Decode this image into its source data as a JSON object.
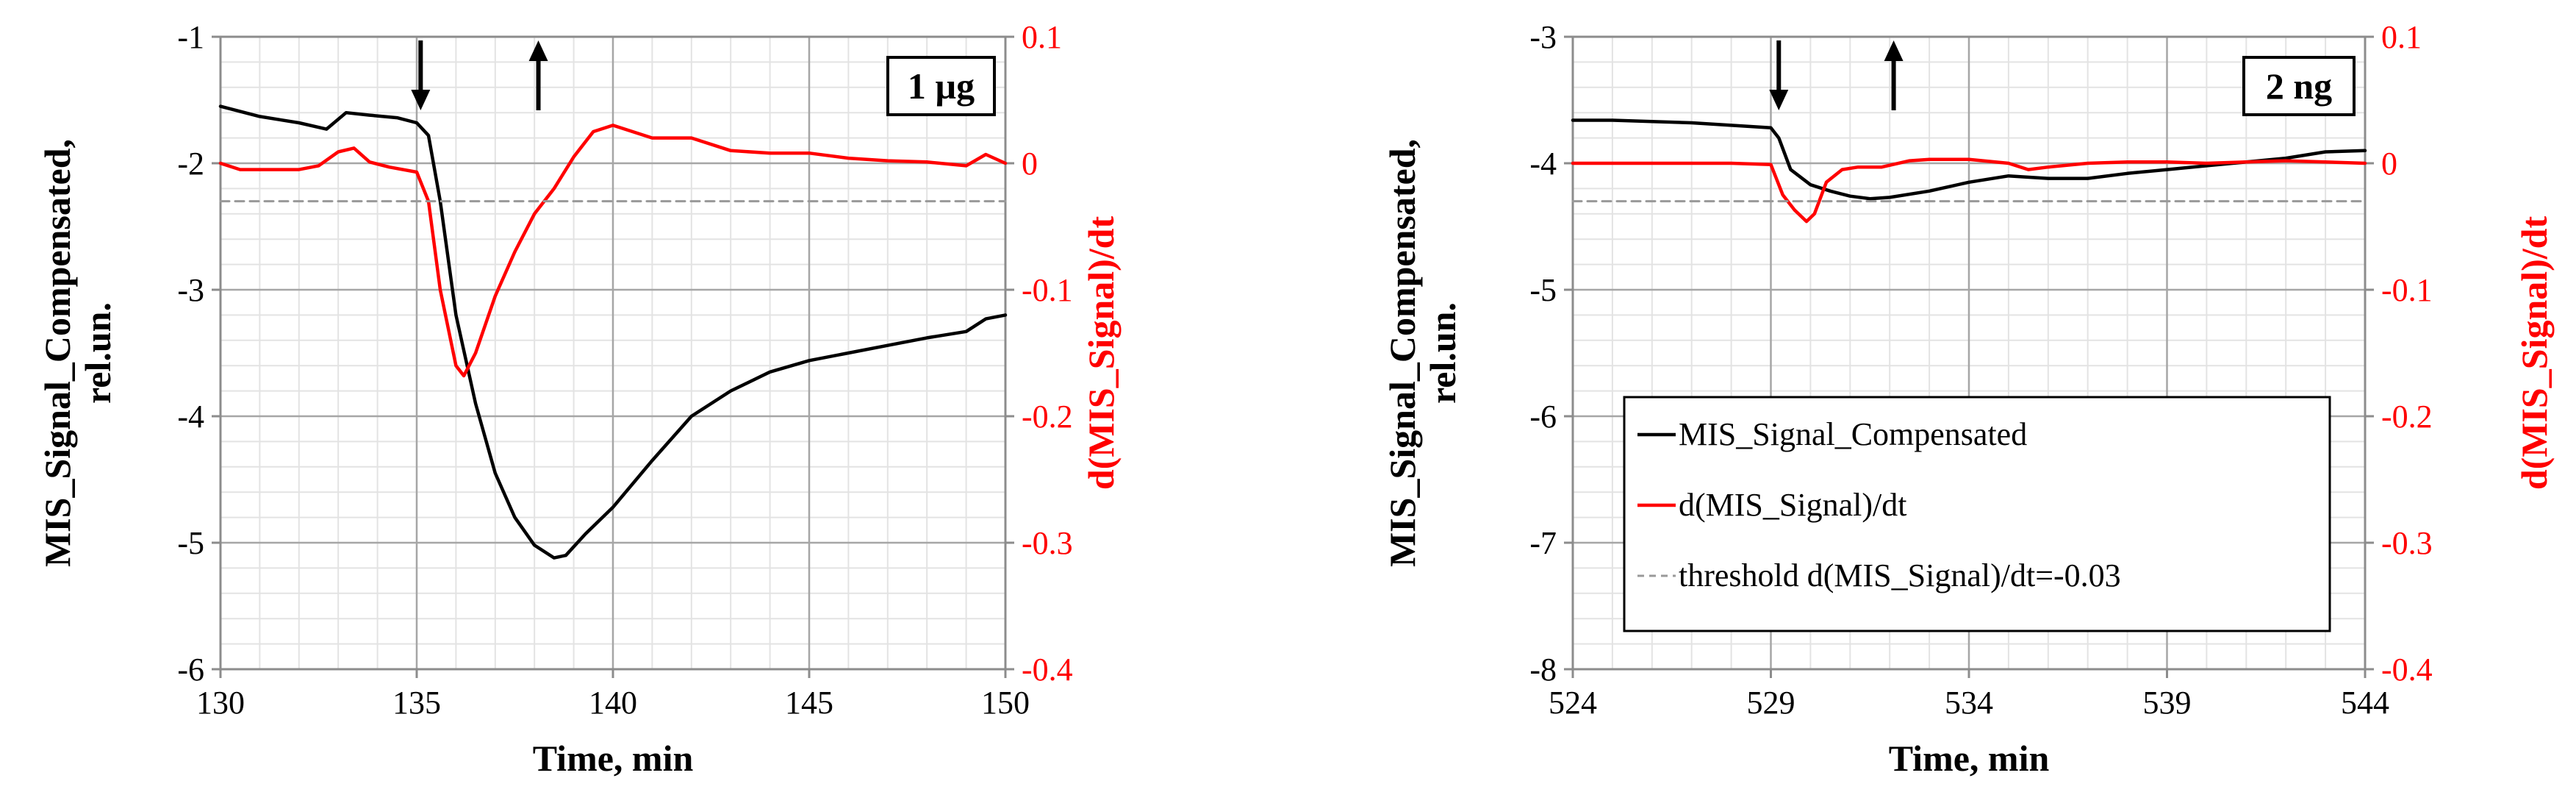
{
  "chart_data": [
    {
      "type": "line",
      "annotation": "1 µg",
      "xlabel": "Time, min",
      "ylabel_left_line1": "MIS_Signal_Compensated,",
      "ylabel_left_line2": "rel.un.",
      "ylabel_right": "d(MIS_Signal)/dt",
      "xlim": [
        130,
        150
      ],
      "x_ticks": [
        130,
        135,
        140,
        145,
        150
      ],
      "x_tick_labels": [
        "130",
        "135",
        "140",
        "145",
        "150"
      ],
      "ylim_left": [
        -6,
        -1
      ],
      "y_left_ticks": [
        -6,
        -5,
        -4,
        -3,
        -2,
        -1
      ],
      "y_left_tick_labels": [
        "-6",
        "-5",
        "-4",
        "-3",
        "-2",
        "-1"
      ],
      "ylim_right": [
        -0.4,
        0.1
      ],
      "y_right_ticks": [
        -0.4,
        -0.3,
        -0.2,
        -0.1,
        0,
        0.1
      ],
      "y_right_tick_labels": [
        "-0.4",
        "-0.3",
        "-0.2",
        "-0.1",
        "0",
        "0.1"
      ],
      "grid": true,
      "arrows": [
        {
          "x": 135.1,
          "direction": "down"
        },
        {
          "x": 138.1,
          "direction": "up"
        }
      ],
      "series": [
        {
          "axis": "left",
          "color": "#000000",
          "style": "solid",
          "x": [
            130,
            131,
            132,
            132.7,
            133.2,
            133.8,
            134.5,
            135.0,
            135.3,
            135.6,
            136.0,
            136.5,
            137.0,
            137.5,
            138.0,
            138.5,
            138.8,
            139.3,
            140.0,
            141.0,
            142.0,
            143.0,
            144.0,
            145.0,
            146.0,
            147.0,
            148.0,
            149.0,
            149.5,
            150.0
          ],
          "y": [
            -1.55,
            -1.63,
            -1.68,
            -1.73,
            -1.6,
            -1.62,
            -1.64,
            -1.68,
            -1.78,
            -2.3,
            -3.2,
            -3.9,
            -4.45,
            -4.8,
            -5.02,
            -5.12,
            -5.1,
            -4.93,
            -4.72,
            -4.35,
            -4.0,
            -3.8,
            -3.65,
            -3.56,
            -3.5,
            -3.44,
            -3.38,
            -3.33,
            -3.23,
            -3.2
          ]
        },
        {
          "axis": "right",
          "color": "#ff0000",
          "style": "solid",
          "x": [
            130,
            130.5,
            131,
            132,
            132.5,
            133.0,
            133.4,
            133.8,
            134.3,
            135.0,
            135.3,
            135.6,
            136.0,
            136.2,
            136.5,
            137.0,
            137.5,
            138.0,
            138.5,
            139.0,
            139.5,
            140.0,
            141.0,
            142.0,
            143.0,
            144.0,
            145.0,
            146.0,
            147.0,
            148.0,
            149.0,
            149.5,
            150.0
          ],
          "y": [
            0.0,
            -0.005,
            -0.005,
            -0.005,
            -0.002,
            0.009,
            0.012,
            0.001,
            -0.003,
            -0.007,
            -0.03,
            -0.1,
            -0.16,
            -0.168,
            -0.15,
            -0.105,
            -0.07,
            -0.04,
            -0.02,
            0.005,
            0.025,
            0.03,
            0.02,
            0.02,
            0.01,
            0.008,
            0.008,
            0.004,
            0.002,
            0.001,
            -0.002,
            0.007,
            0.0
          ]
        },
        {
          "axis": "right",
          "color": "#999999",
          "style": "dashed",
          "x": [
            130,
            150
          ],
          "y": [
            -0.03,
            -0.03
          ]
        }
      ]
    },
    {
      "type": "line",
      "annotation": "2 ng",
      "xlabel": "Time, min",
      "ylabel_left_line1": "MIS_Signal_Compensated,",
      "ylabel_left_line2": "rel.un.",
      "ylabel_right": "d(MIS_Signal)/dt",
      "xlim": [
        524,
        544
      ],
      "x_ticks": [
        524,
        529,
        534,
        539,
        544
      ],
      "x_tick_labels": [
        "524",
        "529",
        "534",
        "539",
        "544"
      ],
      "ylim_left": [
        -8,
        -3
      ],
      "y_left_ticks": [
        -8,
        -7,
        -6,
        -5,
        -4,
        -3
      ],
      "y_left_tick_labels": [
        "-8",
        "-7",
        "-6",
        "-5",
        "-4",
        "-3"
      ],
      "ylim_right": [
        -0.4,
        0.1
      ],
      "y_right_ticks": [
        -0.4,
        -0.3,
        -0.2,
        -0.1,
        0,
        0.1
      ],
      "y_right_tick_labels": [
        "-0.4",
        "-0.3",
        "-0.2",
        "-0.1",
        "0",
        "0.1"
      ],
      "grid": true,
      "arrows": [
        {
          "x": 529.2,
          "direction": "down"
        },
        {
          "x": 532.1,
          "direction": "up"
        }
      ],
      "legend": {
        "placement": "lower-center",
        "entries": [
          {
            "label": "MIS_Signal_Compensated",
            "color": "#000000",
            "style": "solid"
          },
          {
            "label": "d(MIS_Signal)/dt",
            "color": "#ff0000",
            "style": "solid"
          },
          {
            "label": "threshold d(MIS_Signal)/dt=-0.03",
            "color": "#999999",
            "style": "dashed"
          }
        ]
      },
      "series": [
        {
          "axis": "left",
          "color": "#000000",
          "style": "solid",
          "x": [
            524,
            525,
            526,
            527,
            528,
            529.0,
            529.2,
            529.5,
            530.0,
            530.5,
            531.0,
            531.5,
            532.0,
            533.0,
            534.0,
            535.0,
            536.0,
            537.0,
            538.0,
            539.0,
            540.0,
            541.0,
            542.0,
            543.0,
            544.0
          ],
          "y": [
            -3.66,
            -3.66,
            -3.67,
            -3.68,
            -3.7,
            -3.72,
            -3.8,
            -4.05,
            -4.17,
            -4.22,
            -4.26,
            -4.28,
            -4.27,
            -4.22,
            -4.15,
            -4.1,
            -4.12,
            -4.12,
            -4.08,
            -4.05,
            -4.02,
            -3.99,
            -3.96,
            -3.91,
            -3.9
          ]
        },
        {
          "axis": "right",
          "color": "#ff0000",
          "style": "solid",
          "x": [
            524,
            525,
            526,
            527,
            528,
            529.0,
            529.3,
            529.6,
            529.9,
            530.1,
            530.4,
            530.8,
            531.2,
            531.8,
            532.5,
            533.0,
            534.0,
            535.0,
            535.5,
            536.0,
            537.0,
            538.0,
            539.0,
            540.0,
            541.0,
            542.0,
            543.0,
            544.0
          ],
          "y": [
            0.0,
            0.0,
            0.0,
            0.0,
            0.0,
            -0.001,
            -0.025,
            -0.037,
            -0.046,
            -0.04,
            -0.015,
            -0.005,
            -0.003,
            -0.003,
            0.002,
            0.003,
            0.003,
            0.0,
            -0.005,
            -0.003,
            0.0,
            0.001,
            0.001,
            0.0,
            0.001,
            0.002,
            0.001,
            0.0
          ]
        },
        {
          "axis": "right",
          "color": "#999999",
          "style": "dashed",
          "x": [
            524,
            544
          ],
          "y": [
            -0.03,
            -0.03
          ]
        }
      ]
    }
  ]
}
